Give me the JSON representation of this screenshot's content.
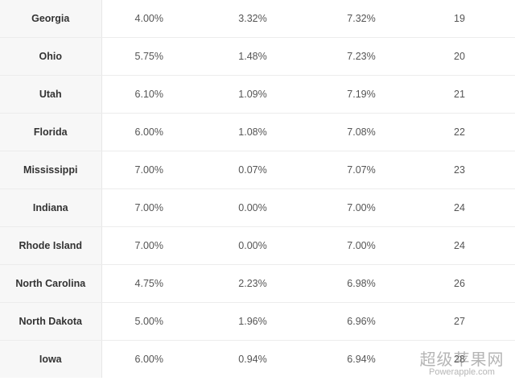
{
  "rows": [
    {
      "state": "Georgia",
      "state_rate": "4.00%",
      "local_rate": "3.32%",
      "combined_rate": "7.32%",
      "rank": "19"
    },
    {
      "state": "Ohio",
      "state_rate": "5.75%",
      "local_rate": "1.48%",
      "combined_rate": "7.23%",
      "rank": "20"
    },
    {
      "state": "Utah",
      "state_rate": "6.10%",
      "local_rate": "1.09%",
      "combined_rate": "7.19%",
      "rank": "21"
    },
    {
      "state": "Florida",
      "state_rate": "6.00%",
      "local_rate": "1.08%",
      "combined_rate": "7.08%",
      "rank": "22"
    },
    {
      "state": "Mississippi",
      "state_rate": "7.00%",
      "local_rate": "0.07%",
      "combined_rate": "7.07%",
      "rank": "23"
    },
    {
      "state": "Indiana",
      "state_rate": "7.00%",
      "local_rate": "0.00%",
      "combined_rate": "7.00%",
      "rank": "24"
    },
    {
      "state": "Rhode Island",
      "state_rate": "7.00%",
      "local_rate": "0.00%",
      "combined_rate": "7.00%",
      "rank": "24"
    },
    {
      "state": "North Carolina",
      "state_rate": "4.75%",
      "local_rate": "2.23%",
      "combined_rate": "6.98%",
      "rank": "26"
    },
    {
      "state": "North Dakota",
      "state_rate": "5.00%",
      "local_rate": "1.96%",
      "combined_rate": "6.96%",
      "rank": "27"
    },
    {
      "state": "Iowa",
      "state_rate": "6.00%",
      "local_rate": "0.94%",
      "combined_rate": "6.94%",
      "rank": "28"
    }
  ],
  "watermark": {
    "cn": "超级苹果网",
    "en": "Powerapple.com"
  }
}
